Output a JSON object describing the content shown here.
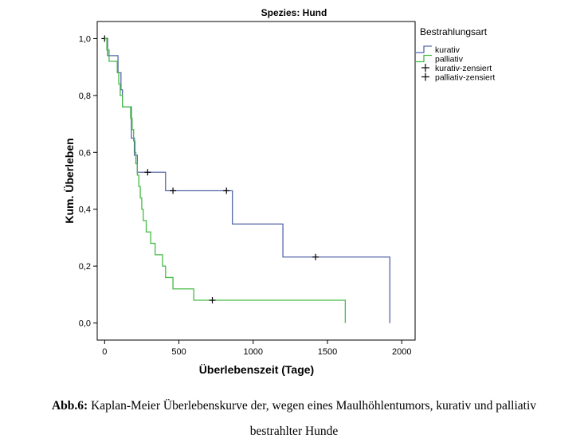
{
  "chart_data": {
    "type": "line",
    "subtype": "kaplan-meier-step",
    "title": "Spezies: Hund",
    "xlabel": "Überlebenszeit (Tage)",
    "ylabel": "Kum. Überleben",
    "xlim": [
      -50,
      2090
    ],
    "ylim": [
      -0.06,
      1.06
    ],
    "xticks": [
      0,
      500,
      1000,
      1500,
      2000
    ],
    "yticks": [
      0.0,
      0.2,
      0.4,
      0.6,
      0.8,
      1.0
    ],
    "ytick_labels": [
      "0,0",
      "0,2",
      "0,4",
      "0,6",
      "0,8",
      "1,0"
    ],
    "grid": false,
    "legend": {
      "title": "Bestrahlungsart",
      "position": "right",
      "entries": [
        "kurativ",
        "palliativ",
        "kurativ-zensiert",
        "palliativ-zensiert"
      ]
    },
    "series": [
      {
        "name": "kurativ",
        "color": "#5566aa",
        "steps": [
          [
            0,
            1.0
          ],
          [
            20,
            0.94
          ],
          [
            90,
            0.88
          ],
          [
            110,
            0.82
          ],
          [
            120,
            0.76
          ],
          [
            180,
            0.65
          ],
          [
            200,
            0.59
          ],
          [
            220,
            0.53
          ],
          [
            410,
            0.465
          ],
          [
            860,
            0.348
          ],
          [
            1200,
            0.232
          ],
          [
            1920,
            0.0
          ]
        ],
        "censored": [
          [
            0,
            1.0
          ],
          [
            290,
            0.53
          ],
          [
            460,
            0.465
          ],
          [
            820,
            0.465
          ],
          [
            1420,
            0.232
          ]
        ]
      },
      {
        "name": "palliativ",
        "color": "#44bb44",
        "steps": [
          [
            0,
            1.0
          ],
          [
            15,
            0.96
          ],
          [
            30,
            0.92
          ],
          [
            85,
            0.88
          ],
          [
            95,
            0.84
          ],
          [
            105,
            0.8
          ],
          [
            120,
            0.76
          ],
          [
            175,
            0.72
          ],
          [
            185,
            0.68
          ],
          [
            195,
            0.64
          ],
          [
            205,
            0.6
          ],
          [
            210,
            0.56
          ],
          [
            220,
            0.52
          ],
          [
            230,
            0.48
          ],
          [
            240,
            0.44
          ],
          [
            250,
            0.4
          ],
          [
            260,
            0.36
          ],
          [
            280,
            0.32
          ],
          [
            310,
            0.28
          ],
          [
            340,
            0.24
          ],
          [
            390,
            0.2
          ],
          [
            410,
            0.16
          ],
          [
            460,
            0.12
          ],
          [
            600,
            0.08
          ],
          [
            1620,
            0.0
          ]
        ],
        "censored": [
          [
            725,
            0.08
          ]
        ]
      }
    ]
  },
  "caption": {
    "label": "Abb.6:",
    "line1": " Kaplan-Meier Überlebenskurve der, wegen eines Maulhöhlentumors, kurativ und palliativ",
    "line2": "bestrahlter Hunde"
  }
}
